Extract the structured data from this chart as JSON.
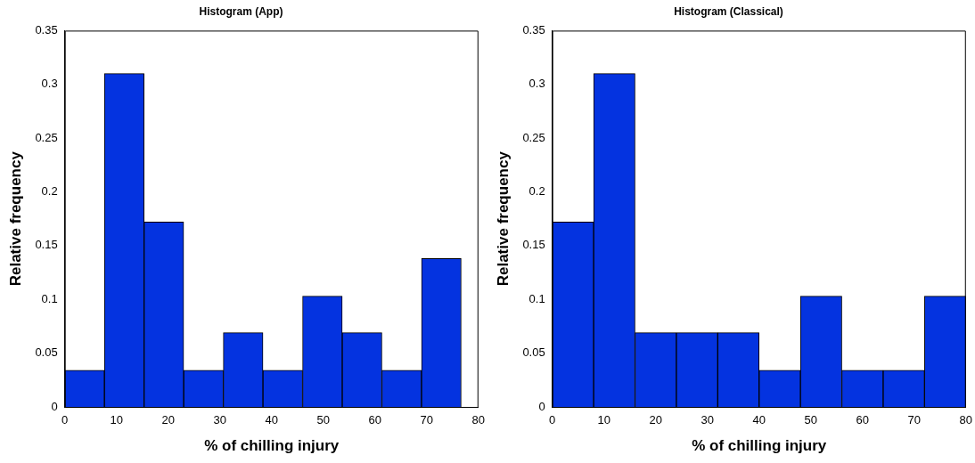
{
  "chart_data": [
    {
      "type": "histogram",
      "title": "Histogram (App)",
      "xlabel": "% of chilling injury",
      "ylabel": "Relative frequency",
      "color": "#0433e0",
      "bins": [
        0,
        7.67,
        15.33,
        23,
        30.67,
        38.33,
        46,
        53.67,
        61.33,
        69,
        76.67
      ],
      "values": [
        0.034,
        0.31,
        0.172,
        0.034,
        0.069,
        0.034,
        0.103,
        0.069,
        0.034,
        0.138
      ],
      "xlim": [
        0,
        80
      ],
      "xticks": [
        0,
        10,
        20,
        30,
        40,
        50,
        60,
        70,
        80
      ],
      "ylim": [
        0,
        0.35
      ],
      "yticks": [
        0,
        0.05,
        0.1,
        0.15,
        0.2,
        0.25,
        0.3,
        0.35
      ],
      "grid": false,
      "legend": false
    },
    {
      "type": "histogram",
      "title": "Histogram (Classical)",
      "xlabel": "% of chilling injury",
      "ylabel": "Relative frequency",
      "color": "#0433e0",
      "bins": [
        0,
        8,
        16,
        24,
        32,
        40,
        48,
        56,
        64,
        72,
        80
      ],
      "values": [
        0.172,
        0.31,
        0.069,
        0.069,
        0.069,
        0.034,
        0.103,
        0.034,
        0.034,
        0.103
      ],
      "xlim": [
        0,
        80
      ],
      "xticks": [
        0,
        10,
        20,
        30,
        40,
        50,
        60,
        70,
        80
      ],
      "ylim": [
        0,
        0.35
      ],
      "yticks": [
        0,
        0.05,
        0.1,
        0.15,
        0.2,
        0.25,
        0.3,
        0.35
      ],
      "grid": false,
      "legend": false
    }
  ]
}
